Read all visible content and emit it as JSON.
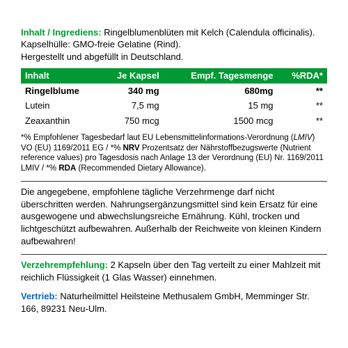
{
  "colors": {
    "green": "#009933",
    "red": "#cc0000",
    "blue": "#0066cc",
    "black": "#000000",
    "white": "#ffffff"
  },
  "ingredients": {
    "label": "Inhalt / Ingrediens:",
    "text1": " Ringelblumenblüten mit Kelch (Calendula officinalis). Kapselhülle: GMO-freie Gelatine (Rind).",
    "text2": "Hergestellt und abgefüllt in Deutschland."
  },
  "table": {
    "headers": [
      "Inhalt",
      "Je Kapsel",
      "Empf. Tagesmenge",
      "%RDA*"
    ],
    "rows": [
      {
        "name": "Ringelblume",
        "per": "340 mg",
        "daily": "680mg",
        "rda": "**",
        "highlight": true
      },
      {
        "name": "Lutein",
        "per": "7,5 mg",
        "daily": "15 mg",
        "rda": "**",
        "highlight": false
      },
      {
        "name": "Zeaxanthin",
        "per": "750 mcg",
        "daily": "1500 mcg",
        "rda": "**",
        "highlight": false
      }
    ]
  },
  "footnote": {
    "pre": "*% Empfohlener Tagesbedarf laut EU Lebensmittelinformations-Verordnung (",
    "lmiv": "LMIV",
    "mid1": ") VO (EU) 1169/2011 EG / *% ",
    "nrv": "NRV",
    "mid2": " Prozentsatz der Nährstoffbezugswerte (Nutrient reference values) pro Tagesdosis nach Anlage 13 der Verordnung (EU) Nr. 1169/2011 LMIV / *% ",
    "rda": "RDA",
    "post": " (Recommended Dietary Allowance)."
  },
  "warning": "Die angegebene, empfohlene tägliche Verzehrmenge darf nicht überschritten werden. Nahrungsergänzungsmittel sind kein Ersatz für eine ausgewogene und abwechslungsreiche Ernährung. Kühl, trocken und lichtgeschützt aufbewahren. Außerhalb der Reichweite von kleinen Kindern aufbewahren!",
  "usage": {
    "label": "Verzehrempfehlung:",
    "text": " 2 Kapseln über den Tag verteilt zu einer Mahlzeit mit reichlich Flüssigkeit (1 Glas Wasser) einnehmen."
  },
  "vendor": {
    "label": "Vertrieb:",
    "text": " Naturheilmittel Heilsteine Methusalem GmbH, Memminger Str. 166, 89231 Neu-Ulm."
  }
}
